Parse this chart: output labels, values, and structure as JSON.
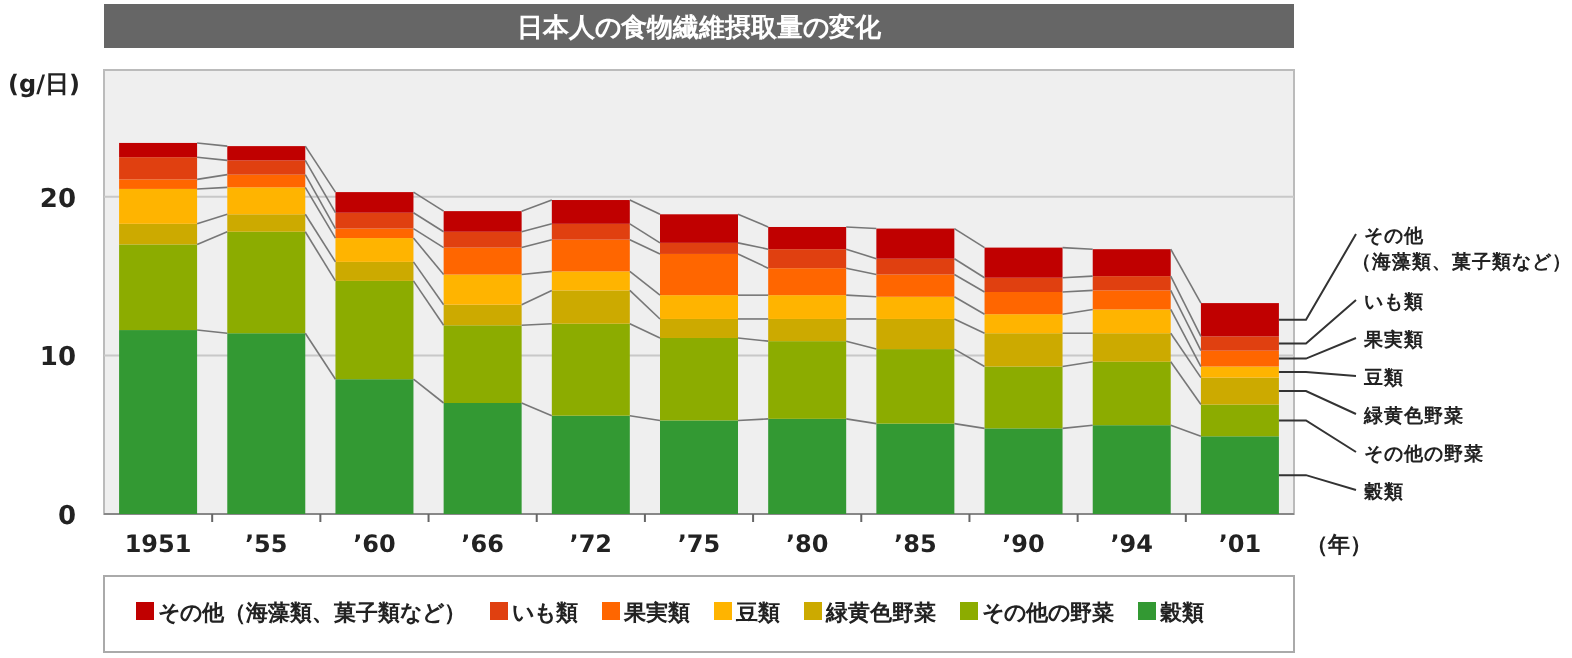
{
  "chart_data": {
    "type": "bar",
    "stacked": true,
    "title": "日本人の食物繊維摂取量の変化",
    "ylabel": "(g/日)",
    "xlabel": "（年）",
    "categories": [
      "1951",
      "’55",
      "’60",
      "’66",
      "’72",
      "’75",
      "’80",
      "’85",
      "’90",
      "’94",
      "’01"
    ],
    "series": [
      {
        "name": "穀類",
        "color": "#339933",
        "values": [
          11.6,
          11.4,
          8.5,
          7.0,
          6.2,
          5.9,
          6.0,
          5.7,
          5.4,
          5.6,
          4.9
        ]
      },
      {
        "name": "その他の野菜",
        "color": "#8cac00",
        "values": [
          5.4,
          6.4,
          6.2,
          4.9,
          5.8,
          5.2,
          4.9,
          4.7,
          3.9,
          4.0,
          2.0
        ]
      },
      {
        "name": "緑黄色野菜",
        "color": "#ccaa00",
        "values": [
          1.3,
          1.1,
          1.2,
          1.3,
          2.1,
          1.2,
          1.4,
          1.9,
          2.1,
          1.8,
          1.7
        ]
      },
      {
        "name": "豆類",
        "color": "#ffb400",
        "values": [
          2.2,
          1.7,
          1.5,
          1.9,
          1.2,
          1.5,
          1.5,
          1.4,
          1.2,
          1.5,
          0.7
        ]
      },
      {
        "name": "果実類",
        "color": "#ff6600",
        "values": [
          0.6,
          0.8,
          0.6,
          1.7,
          2.0,
          2.6,
          1.7,
          1.4,
          1.4,
          1.2,
          1.0
        ]
      },
      {
        "name": "いも類",
        "color": "#e04010",
        "values": [
          1.4,
          0.9,
          1.0,
          1.0,
          1.0,
          0.7,
          1.2,
          1.0,
          0.9,
          0.9,
          0.9
        ]
      },
      {
        "name": "その他（海藻類、菓子類など）",
        "color": "#c00000",
        "values": [
          0.9,
          0.9,
          1.3,
          1.3,
          1.5,
          1.8,
          1.4,
          1.9,
          1.9,
          1.7,
          2.1
        ]
      }
    ],
    "ylim": [
      0,
      28
    ],
    "yticks": [
      0,
      10,
      20
    ],
    "grid": "y",
    "legend": "bottom"
  }
}
